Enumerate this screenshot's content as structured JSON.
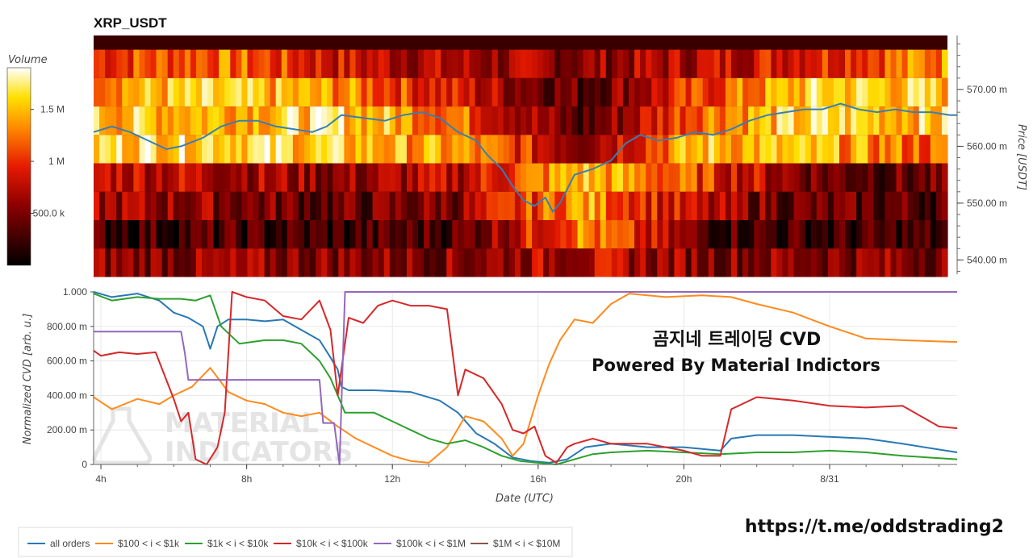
{
  "colors": {
    "all_orders": "#2878b4",
    "o100_1k": "#ff8a1c",
    "o1k_10k": "#2ca02c",
    "o10k_100k": "#d62728",
    "o100k_1M": "#9467bd",
    "o1M_10M": "#8c564b",
    "price_line": "#3a7fb0"
  },
  "text": {
    "overlay_line1": "곰지네 트레이딩 CVD",
    "overlay_line2": "Powered By Material Indictors",
    "url": "https://t.me/oddstrading2",
    "watermark_line1": "MATERIAL",
    "watermark_line2": "INDICATORS"
  },
  "chart_data": [
    {
      "type": "heatmap",
      "title": "XRP_USDT",
      "colorbar_label": "Volume",
      "colorbar_ticks": [
        "1.5 M",
        "1 M",
        "500.0 k"
      ],
      "colorbar_tick_values": [
        1500000,
        1000000,
        500000
      ],
      "colorbar_range": [
        0,
        1900000
      ],
      "ylabel": "Price [USDT]",
      "y_ticks": [
        "570.00 m",
        "560.00 m",
        "550.00 m",
        "540.00 m"
      ],
      "y_tick_values": [
        0.57,
        0.56,
        0.55,
        0.54
      ],
      "ylim": [
        0.5375,
        0.5795
      ],
      "price_bands": [
        0.5745,
        0.5695,
        0.5645,
        0.5595,
        0.5545,
        0.5495,
        0.5445,
        0.5395
      ],
      "band_profiles": [
        [
          0.55,
          0.65,
          0.45,
          0.35,
          0.3,
          0.4,
          0.55,
          0.7
        ],
        [
          0.75,
          0.8,
          0.7,
          0.45,
          0.2,
          0.55,
          0.85,
          0.8
        ],
        [
          0.8,
          0.8,
          0.85,
          0.65,
          0.15,
          0.7,
          0.85,
          0.8
        ],
        [
          0.85,
          0.9,
          0.8,
          0.7,
          0.35,
          0.8,
          0.75,
          0.6
        ],
        [
          0.45,
          0.4,
          0.3,
          0.4,
          0.8,
          0.55,
          0.25,
          0.2
        ],
        [
          0.35,
          0.3,
          0.2,
          0.3,
          0.75,
          0.35,
          0.2,
          0.2
        ],
        [
          0.15,
          0.15,
          0.12,
          0.2,
          0.7,
          0.2,
          0.12,
          0.12
        ],
        [
          0.3,
          0.3,
          0.3,
          0.3,
          0.4,
          0.3,
          0.3,
          0.3
        ]
      ],
      "price_series": {
        "x_hours": [
          3.8,
          4.3,
          4.8,
          5.3,
          5.8,
          6.2,
          6.8,
          7.3,
          7.8,
          8.3,
          8.8,
          9.3,
          9.8,
          10.2,
          10.6,
          11.2,
          11.8,
          12.3,
          12.8,
          13.3,
          13.8,
          14.3,
          14.6,
          15.0,
          15.3,
          15.6,
          15.9,
          16.2,
          16.4,
          16.6,
          17.0,
          17.5,
          18.0,
          18.4,
          18.8,
          19.3,
          19.8,
          20.3,
          20.8,
          21.3,
          21.8,
          22.3,
          22.8,
          23.3,
          23.8,
          24.3,
          24.8,
          25.3,
          25.8,
          26.3,
          26.8,
          27.3,
          27.5
        ],
        "price": [
          0.5625,
          0.5635,
          0.5625,
          0.561,
          0.5595,
          0.56,
          0.5615,
          0.5635,
          0.5645,
          0.5645,
          0.5635,
          0.563,
          0.5625,
          0.5635,
          0.5655,
          0.565,
          0.5645,
          0.5655,
          0.566,
          0.565,
          0.5625,
          0.561,
          0.5585,
          0.556,
          0.553,
          0.5505,
          0.5495,
          0.551,
          0.5485,
          0.55,
          0.555,
          0.556,
          0.5575,
          0.5605,
          0.562,
          0.561,
          0.5615,
          0.5625,
          0.562,
          0.563,
          0.5645,
          0.5655,
          0.566,
          0.5665,
          0.5665,
          0.5675,
          0.5665,
          0.566,
          0.5665,
          0.566,
          0.566,
          0.5655,
          0.5655
        ]
      }
    },
    {
      "type": "line",
      "xlabel": "Date (UTC)",
      "ylabel": "Normalized CVD [arb. u.]",
      "x_ticks": [
        "4h",
        "8h",
        "12h",
        "16h",
        "20h",
        "8/31"
      ],
      "x_tick_hours": [
        4,
        8,
        12,
        16,
        20,
        24
      ],
      "xlim": [
        3.8,
        27.5
      ],
      "y_ticks": [
        "1.000",
        "800.00 m",
        "600.00 m",
        "400.00 m",
        "200.00 m",
        "0"
      ],
      "y_tick_values": [
        1.0,
        0.8,
        0.6,
        0.4,
        0.2,
        0.0
      ],
      "ylim": [
        0,
        1
      ],
      "series": [
        {
          "name": "all orders",
          "color_key": "all_orders",
          "x": [
            3.8,
            4.3,
            5.0,
            5.6,
            6.0,
            6.4,
            6.8,
            7.0,
            7.2,
            7.5,
            8.0,
            8.5,
            9.0,
            9.5,
            10.0,
            10.3,
            10.5,
            10.6,
            10.8,
            11.5,
            12.5,
            13.3,
            13.8,
            14.3,
            14.8,
            15.3,
            15.8,
            16.3,
            16.8,
            17.3,
            18.0,
            19.0,
            20.0,
            21.0,
            21.3,
            22.0,
            23.0,
            24.0,
            25.0,
            26.0,
            27.5
          ],
          "y": [
            1.0,
            0.97,
            0.99,
            0.95,
            0.88,
            0.85,
            0.8,
            0.67,
            0.8,
            0.84,
            0.84,
            0.83,
            0.84,
            0.78,
            0.72,
            0.62,
            0.55,
            0.45,
            0.43,
            0.43,
            0.42,
            0.37,
            0.3,
            0.18,
            0.12,
            0.04,
            0.02,
            0.01,
            0.03,
            0.1,
            0.12,
            0.1,
            0.1,
            0.08,
            0.15,
            0.17,
            0.17,
            0.16,
            0.15,
            0.12,
            0.07
          ]
        },
        {
          "name": "$100 < i < $1k",
          "color_key": "o100_1k",
          "x": [
            3.8,
            4.3,
            5.0,
            5.6,
            6.0,
            6.5,
            7.0,
            7.5,
            8.0,
            8.5,
            9.0,
            9.5,
            10.0,
            10.5,
            11.0,
            11.5,
            12.0,
            12.5,
            13.0,
            13.5,
            14.0,
            14.5,
            15.0,
            15.3,
            15.6,
            16.0,
            16.3,
            16.6,
            17.0,
            17.5,
            18.0,
            18.5,
            19.5,
            20.5,
            21.3,
            22.0,
            23.0,
            24.0,
            25.0,
            26.0,
            27.5
          ],
          "y": [
            0.39,
            0.32,
            0.38,
            0.35,
            0.4,
            0.45,
            0.56,
            0.42,
            0.37,
            0.35,
            0.3,
            0.28,
            0.3,
            0.22,
            0.15,
            0.1,
            0.05,
            0.02,
            0.01,
            0.1,
            0.28,
            0.25,
            0.15,
            0.05,
            0.12,
            0.4,
            0.58,
            0.72,
            0.84,
            0.82,
            0.93,
            0.99,
            0.97,
            0.98,
            0.97,
            0.93,
            0.88,
            0.8,
            0.73,
            0.72,
            0.71
          ]
        },
        {
          "name": "$1k < i < $10k",
          "color_key": "o1k_10k",
          "x": [
            3.8,
            4.3,
            5.0,
            5.6,
            6.2,
            6.6,
            7.0,
            7.3,
            7.8,
            8.5,
            9.0,
            9.5,
            10.0,
            10.3,
            10.5,
            10.7,
            11.5,
            12.0,
            12.5,
            13.0,
            13.5,
            14.0,
            14.5,
            15.0,
            15.5,
            16.0,
            16.5,
            17.0,
            17.5,
            18.0,
            19.0,
            20.0,
            21.0,
            22.0,
            23.0,
            24.0,
            25.0,
            26.0,
            27.5
          ],
          "y": [
            0.99,
            0.95,
            0.97,
            0.96,
            0.96,
            0.95,
            0.98,
            0.8,
            0.7,
            0.72,
            0.72,
            0.7,
            0.6,
            0.5,
            0.4,
            0.3,
            0.3,
            0.25,
            0.2,
            0.15,
            0.12,
            0.14,
            0.1,
            0.05,
            0.02,
            0.01,
            0.0,
            0.03,
            0.06,
            0.07,
            0.08,
            0.07,
            0.06,
            0.07,
            0.07,
            0.08,
            0.07,
            0.05,
            0.03
          ]
        },
        {
          "name": "$10k < i < $100k",
          "color_key": "o10k_100k",
          "x": [
            3.8,
            4.0,
            4.5,
            5.0,
            5.5,
            6.0,
            6.2,
            6.4,
            6.6,
            6.9,
            7.2,
            7.4,
            7.6,
            8.0,
            8.5,
            9.0,
            9.5,
            10.0,
            10.3,
            10.5,
            10.8,
            11.2,
            11.6,
            12.0,
            12.5,
            13.0,
            13.5,
            13.8,
            14.0,
            14.5,
            15.0,
            15.3,
            15.6,
            15.9,
            16.2,
            16.5,
            16.8,
            17.0,
            17.5,
            18.0,
            19.0,
            20.0,
            20.5,
            21.0,
            21.3,
            22.0,
            23.0,
            24.0,
            25.0,
            26.0,
            27.0,
            27.5
          ],
          "y": [
            0.66,
            0.63,
            0.65,
            0.64,
            0.65,
            0.38,
            0.25,
            0.3,
            0.03,
            0.0,
            0.1,
            0.3,
            1.0,
            0.97,
            0.95,
            0.86,
            0.84,
            0.95,
            0.78,
            0.4,
            0.85,
            0.82,
            0.92,
            0.95,
            0.92,
            0.92,
            0.9,
            0.4,
            0.55,
            0.5,
            0.35,
            0.2,
            0.18,
            0.22,
            0.05,
            0.01,
            0.1,
            0.12,
            0.15,
            0.12,
            0.12,
            0.08,
            0.05,
            0.05,
            0.32,
            0.39,
            0.37,
            0.34,
            0.33,
            0.34,
            0.22,
            0.21
          ]
        },
        {
          "name": "$100k < i < $1M",
          "color_key": "o100k_1M",
          "x": [
            3.8,
            6.2,
            6.3,
            6.4,
            10.0,
            10.1,
            10.4,
            10.55,
            10.7,
            27.5
          ],
          "y": [
            0.77,
            0.77,
            0.65,
            0.49,
            0.49,
            0.24,
            0.24,
            0.0,
            1.0,
            1.0
          ]
        },
        {
          "name": "$1M < i < $10M",
          "color_key": "o1M_10M",
          "x": [],
          "y": []
        }
      ]
    }
  ]
}
